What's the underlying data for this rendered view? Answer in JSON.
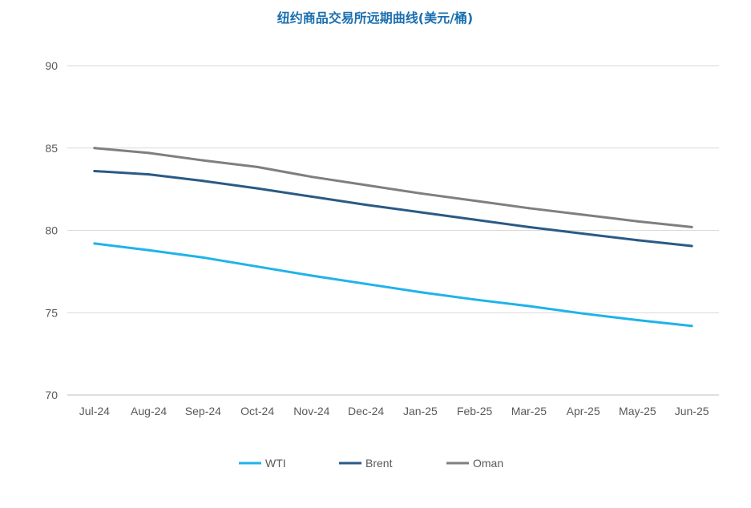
{
  "chart_data": {
    "type": "line",
    "title": "纽约商品交易所远期曲线(美元/桶)",
    "xlabel": "",
    "ylabel": "",
    "categories": [
      "Jul-24",
      "Aug-24",
      "Sep-24",
      "Oct-24",
      "Nov-24",
      "Dec-24",
      "Jan-25",
      "Feb-25",
      "Mar-25",
      "Apr-25",
      "May-25",
      "Jun-25"
    ],
    "ylim": [
      70,
      90
    ],
    "yticks": [
      70,
      75,
      80,
      85,
      90
    ],
    "grid": true,
    "legend_position": "bottom",
    "series": [
      {
        "name": "WTI",
        "color": "#1fb3ea",
        "values": [
          79.2,
          78.8,
          78.35,
          77.8,
          77.25,
          76.75,
          76.25,
          75.8,
          75.4,
          74.95,
          74.55,
          74.2
        ]
      },
      {
        "name": "Brent",
        "color": "#2a5a86",
        "values": [
          83.6,
          83.4,
          83.0,
          82.55,
          82.05,
          81.55,
          81.1,
          80.65,
          80.2,
          79.8,
          79.4,
          79.05
        ]
      },
      {
        "name": "Oman",
        "color": "#7f7f7f",
        "values": [
          85.0,
          84.7,
          84.25,
          83.85,
          83.25,
          82.75,
          82.25,
          81.8,
          81.35,
          80.95,
          80.55,
          80.2
        ]
      }
    ]
  }
}
